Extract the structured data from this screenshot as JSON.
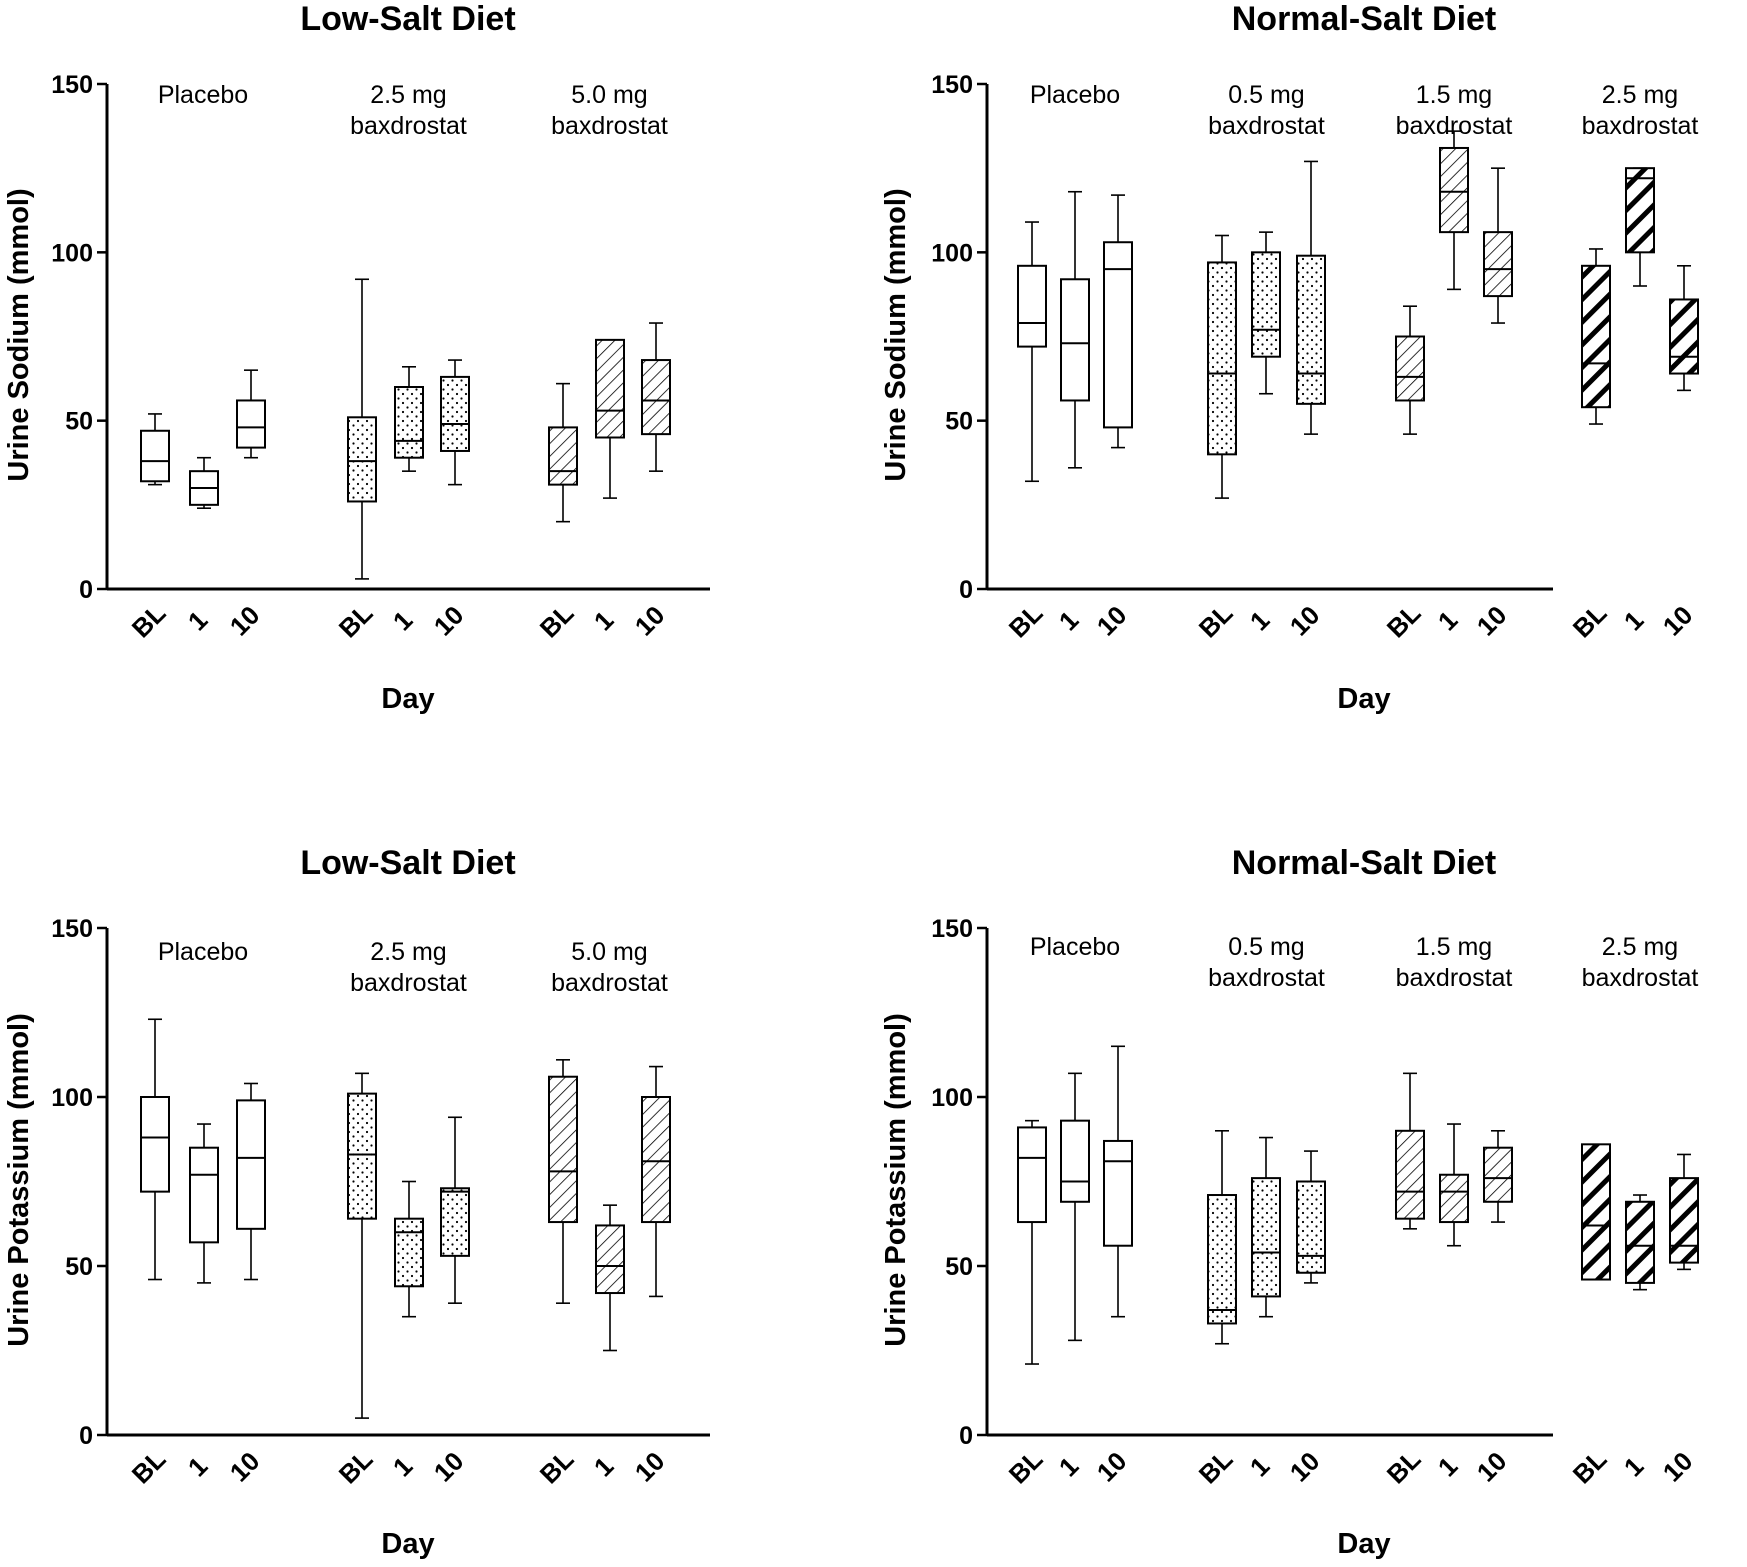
{
  "chart_data": [
    {
      "type": "boxplot",
      "title": "Low-Salt Diet",
      "ylabel": "Urine  Sodium (mmol)",
      "xlabel": "Day",
      "ylim": [
        0,
        150
      ],
      "yticks": [
        0,
        50,
        100,
        150
      ],
      "groups": [
        {
          "label": [
            "Placebo"
          ],
          "pattern": "none",
          "boxes": [
            {
              "day": "BL",
              "min": 31,
              "q1": 32,
              "median": 38,
              "q3": 47,
              "max": 52
            },
            {
              "day": "1",
              "min": 24,
              "q1": 25,
              "median": 30,
              "q3": 35,
              "max": 39
            },
            {
              "day": "10",
              "min": 39,
              "q1": 42,
              "median": 48,
              "q3": 56,
              "max": 65
            }
          ]
        },
        {
          "label": [
            "2.5 mg",
            "baxdrostat"
          ],
          "pattern": "dots",
          "boxes": [
            {
              "day": "BL",
              "min": 3,
              "q1": 26,
              "median": 38,
              "q3": 51,
              "max": 92
            },
            {
              "day": "1",
              "min": 35,
              "q1": 39,
              "median": 44,
              "q3": 60,
              "max": 66
            },
            {
              "day": "10",
              "min": 31,
              "q1": 41,
              "median": 49,
              "q3": 63,
              "max": 68
            }
          ]
        },
        {
          "label": [
            "5.0 mg",
            "baxdrostat"
          ],
          "pattern": "hatch-thin",
          "boxes": [
            {
              "day": "BL",
              "min": 20,
              "q1": 31,
              "median": 35,
              "q3": 48,
              "max": 61
            },
            {
              "day": "1",
              "min": 27,
              "q1": 45,
              "median": 53,
              "q3": 74,
              "max": 74
            },
            {
              "day": "10",
              "min": 35,
              "q1": 46,
              "median": 56,
              "q3": 68,
              "max": 79
            }
          ]
        }
      ]
    },
    {
      "type": "boxplot",
      "title": "Normal-Salt Diet",
      "ylabel": "Urine  Sodium (mmol)",
      "xlabel": "Day",
      "ylim": [
        0,
        150
      ],
      "yticks": [
        0,
        50,
        100,
        150
      ],
      "groups": [
        {
          "label": [
            "Placebo"
          ],
          "pattern": "none",
          "boxes": [
            {
              "day": "BL",
              "min": 32,
              "q1": 72,
              "median": 79,
              "q3": 96,
              "max": 109
            },
            {
              "day": "1",
              "min": 36,
              "q1": 56,
              "median": 73,
              "q3": 92,
              "max": 118
            },
            {
              "day": "10",
              "min": 42,
              "q1": 48,
              "median": 95,
              "q3": 103,
              "max": 117
            }
          ]
        },
        {
          "label": [
            "0.5 mg",
            "baxdrostat"
          ],
          "pattern": "dots",
          "boxes": [
            {
              "day": "BL",
              "min": 27,
              "q1": 40,
              "median": 64,
              "q3": 97,
              "max": 105
            },
            {
              "day": "1",
              "min": 58,
              "q1": 69,
              "median": 77,
              "q3": 100,
              "max": 106
            },
            {
              "day": "10",
              "min": 46,
              "q1": 55,
              "median": 64,
              "q3": 99,
              "max": 127
            }
          ]
        },
        {
          "label": [
            "1.5 mg",
            "baxdrostat"
          ],
          "pattern": "hatch-thin",
          "boxes": [
            {
              "day": "BL",
              "min": 46,
              "q1": 56,
              "median": 63,
              "q3": 75,
              "max": 84
            },
            {
              "day": "1",
              "min": 89,
              "q1": 106,
              "median": 118,
              "q3": 131,
              "max": 136
            },
            {
              "day": "10",
              "min": 79,
              "q1": 87,
              "median": 95,
              "q3": 106,
              "max": 125
            }
          ]
        },
        {
          "label": [
            "2.5 mg",
            "baxdrostat"
          ],
          "pattern": "hatch-bold",
          "boxes": [
            {
              "day": "BL",
              "min": 49,
              "q1": 54,
              "median": 67,
              "q3": 96,
              "max": 101
            },
            {
              "day": "1",
              "min": 90,
              "q1": 100,
              "median": 122,
              "q3": 125,
              "max": 125
            },
            {
              "day": "10",
              "min": 59,
              "q1": 64,
              "median": 69,
              "q3": 86,
              "max": 96
            }
          ]
        }
      ]
    },
    {
      "type": "boxplot",
      "title": "Low-Salt Diet",
      "ylabel": "Urine  Potassium (mmol)",
      "xlabel": "Day",
      "ylim": [
        0,
        150
      ],
      "yticks": [
        0,
        50,
        100,
        150
      ],
      "groups": [
        {
          "label": [
            "Placebo"
          ],
          "pattern": "none",
          "boxes": [
            {
              "day": "BL",
              "min": 46,
              "q1": 72,
              "median": 88,
              "q3": 100,
              "max": 123
            },
            {
              "day": "1",
              "min": 45,
              "q1": 57,
              "median": 77,
              "q3": 85,
              "max": 92
            },
            {
              "day": "10",
              "min": 46,
              "q1": 61,
              "median": 82,
              "q3": 99,
              "max": 104
            }
          ]
        },
        {
          "label": [
            "2.5 mg",
            "baxdrostat"
          ],
          "pattern": "dots",
          "boxes": [
            {
              "day": "BL",
              "min": 5,
              "q1": 64,
              "median": 83,
              "q3": 101,
              "max": 107
            },
            {
              "day": "1",
              "min": 35,
              "q1": 44,
              "median": 60,
              "q3": 64,
              "max": 75
            },
            {
              "day": "10",
              "min": 39,
              "q1": 53,
              "median": 72,
              "q3": 73,
              "max": 94
            }
          ]
        },
        {
          "label": [
            "5.0 mg",
            "baxdrostat"
          ],
          "pattern": "hatch-thin",
          "boxes": [
            {
              "day": "BL",
              "min": 39,
              "q1": 63,
              "median": 78,
              "q3": 106,
              "max": 111
            },
            {
              "day": "1",
              "min": 25,
              "q1": 42,
              "median": 50,
              "q3": 62,
              "max": 68
            },
            {
              "day": "10",
              "min": 41,
              "q1": 63,
              "median": 81,
              "q3": 100,
              "max": 109
            }
          ]
        }
      ]
    },
    {
      "type": "boxplot",
      "title": "Normal-Salt Diet",
      "ylabel": "Urine  Potassium (mmol)",
      "xlabel": "Day",
      "ylim": [
        0,
        150
      ],
      "yticks": [
        0,
        50,
        100,
        150
      ],
      "groups": [
        {
          "label": [
            "Placebo"
          ],
          "pattern": "none",
          "boxes": [
            {
              "day": "BL",
              "min": 21,
              "q1": 63,
              "median": 82,
              "q3": 91,
              "max": 93
            },
            {
              "day": "1",
              "min": 28,
              "q1": 69,
              "median": 75,
              "q3": 93,
              "max": 107
            },
            {
              "day": "10",
              "min": 35,
              "q1": 56,
              "median": 81,
              "q3": 87,
              "max": 115
            }
          ]
        },
        {
          "label": [
            "0.5 mg",
            "baxdrostat"
          ],
          "pattern": "dots",
          "boxes": [
            {
              "day": "BL",
              "min": 27,
              "q1": 33,
              "median": 37,
              "q3": 71,
              "max": 90
            },
            {
              "day": "1",
              "min": 35,
              "q1": 41,
              "median": 54,
              "q3": 76,
              "max": 88
            },
            {
              "day": "10",
              "min": 45,
              "q1": 48,
              "median": 53,
              "q3": 75,
              "max": 84
            }
          ]
        },
        {
          "label": [
            "1.5 mg",
            "baxdrostat"
          ],
          "pattern": "hatch-thin",
          "boxes": [
            {
              "day": "BL",
              "min": 61,
              "q1": 64,
              "median": 72,
              "q3": 90,
              "max": 107
            },
            {
              "day": "1",
              "min": 56,
              "q1": 63,
              "median": 72,
              "q3": 77,
              "max": 92
            },
            {
              "day": "10",
              "min": 63,
              "q1": 69,
              "median": 76,
              "q3": 85,
              "max": 90
            }
          ]
        },
        {
          "label": [
            "2.5 mg",
            "baxdrostat"
          ],
          "pattern": "hatch-bold",
          "boxes": [
            {
              "day": "BL",
              "min": 46,
              "q1": 46,
              "median": 62,
              "q3": 86,
              "max": 86
            },
            {
              "day": "1",
              "min": 43,
              "q1": 45,
              "median": 56,
              "q3": 69,
              "max": 71
            },
            {
              "day": "10",
              "min": 49,
              "q1": 51,
              "median": 56,
              "q3": 76,
              "max": 83
            }
          ]
        }
      ]
    }
  ]
}
